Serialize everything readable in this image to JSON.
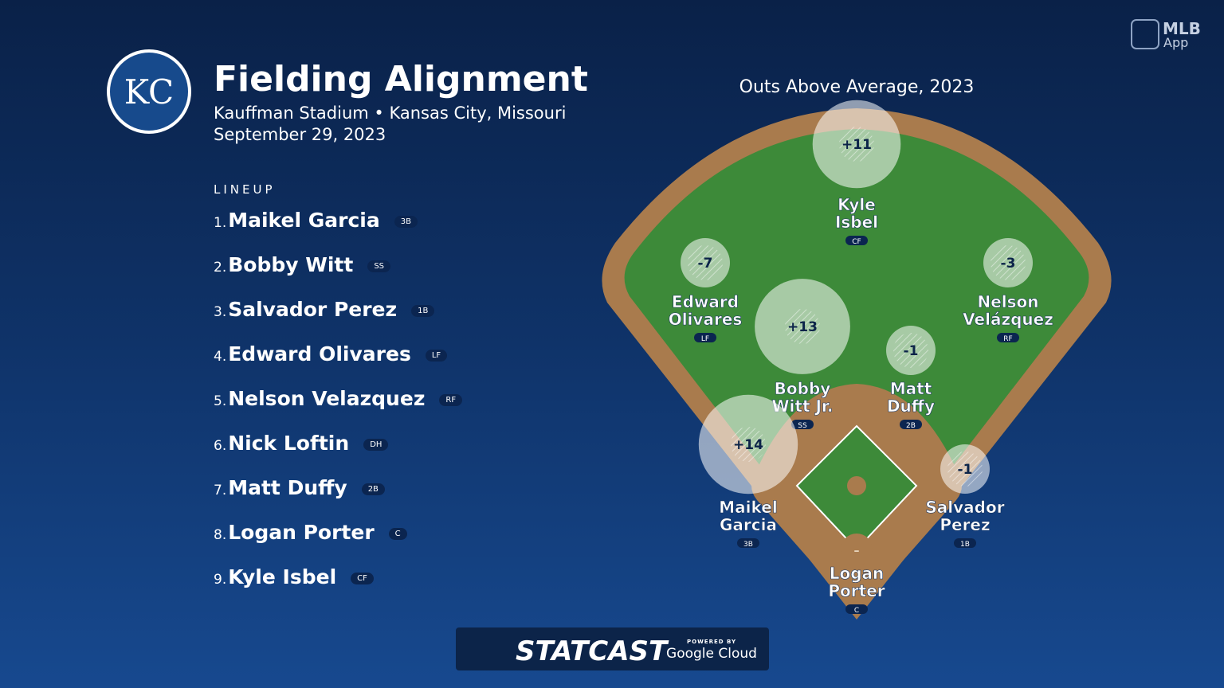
{
  "header": {
    "logo": "KC",
    "title": "Fielding Alignment",
    "venue": "Kauffman Stadium • Kansas City, Missouri",
    "date": "September 29, 2023"
  },
  "brand": {
    "line1": "MLB",
    "line2": "App"
  },
  "lineup": {
    "label": "LINEUP",
    "players": [
      {
        "order": "1.",
        "name": "Maikel Garcia",
        "pos": "3B"
      },
      {
        "order": "2.",
        "name": "Bobby Witt",
        "pos": "SS"
      },
      {
        "order": "3.",
        "name": "Salvador Perez",
        "pos": "1B"
      },
      {
        "order": "4.",
        "name": "Edward Olivares",
        "pos": "LF"
      },
      {
        "order": "5.",
        "name": "Nelson Velazquez",
        "pos": "RF"
      },
      {
        "order": "6.",
        "name": "Nick Loftin",
        "pos": "DH"
      },
      {
        "order": "7.",
        "name": "Matt Duffy",
        "pos": "2B"
      },
      {
        "order": "8.",
        "name": "Logan Porter",
        "pos": "C"
      },
      {
        "order": "9.",
        "name": "Kyle Isbel",
        "pos": "CF"
      }
    ]
  },
  "field": {
    "title": "Outs Above Average, 2023",
    "players": [
      {
        "name_lines": [
          "Kyle",
          "Isbel"
        ],
        "pos": "CF",
        "oaa": {
          "value": 11,
          "label": "+11"
        }
      },
      {
        "name_lines": [
          "Edward",
          "Olivares"
        ],
        "pos": "LF",
        "oaa": {
          "value": -7,
          "label": "-7"
        }
      },
      {
        "name_lines": [
          "Nelson",
          "Velázquez"
        ],
        "pos": "RF",
        "oaa": {
          "value": -3,
          "label": "-3"
        }
      },
      {
        "name_lines": [
          "Bobby",
          "Witt Jr."
        ],
        "pos": "SS",
        "oaa": {
          "value": 13,
          "label": "+13"
        }
      },
      {
        "name_lines": [
          "Matt",
          "Duffy"
        ],
        "pos": "2B",
        "oaa": {
          "value": -1,
          "label": "-1"
        }
      },
      {
        "name_lines": [
          "Maikel",
          "Garcia"
        ],
        "pos": "3B",
        "oaa": {
          "value": 14,
          "label": "+14"
        }
      },
      {
        "name_lines": [
          "Salvador",
          "Perez"
        ],
        "pos": "1B",
        "oaa": {
          "value": -1,
          "label": "-1"
        }
      },
      {
        "name_lines": [
          "Logan",
          "Porter"
        ],
        "pos": "C",
        "oaa": {
          "value": null,
          "label": "–"
        }
      }
    ]
  },
  "footer": {
    "brand": "STATCAST",
    "powered": "POWERED BY",
    "cloud": "Google Cloud"
  }
}
